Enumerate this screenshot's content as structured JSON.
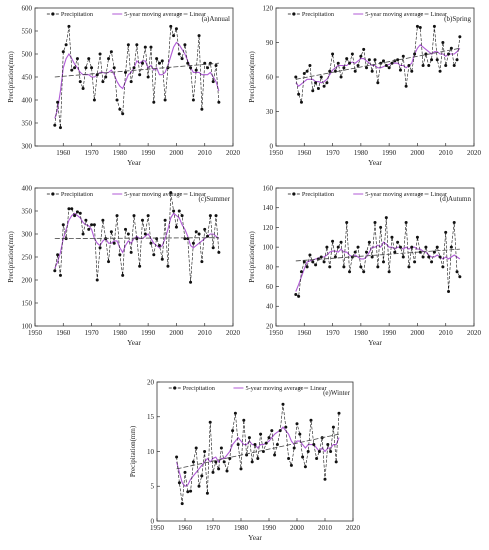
{
  "colors": {
    "precipitation": "#111111",
    "moving_average": "#b05ad6",
    "linear": "#444444",
    "axis": "#333333"
  },
  "chart_data": [
    {
      "type": "line",
      "panel_label": "(a)Annual",
      "xlabel": "Year",
      "ylabel": "Precipitation(mm)",
      "xlim": [
        1950,
        2020
      ],
      "ylim": [
        300,
        600
      ],
      "xticks": [
        1960,
        1970,
        1980,
        1990,
        2000,
        2010,
        2020
      ],
      "yticks": [
        300,
        350,
        400,
        450,
        500,
        550,
        600
      ],
      "legend": {
        "precipitation": "Precipitation",
        "moving_average": "5-year moving average",
        "linear": "Linear",
        "placement": "top"
      },
      "x": [
        1957,
        1958,
        1959,
        1960,
        1961,
        1962,
        1963,
        1964,
        1965,
        1966,
        1967,
        1968,
        1969,
        1970,
        1971,
        1972,
        1973,
        1974,
        1975,
        1976,
        1977,
        1978,
        1979,
        1980,
        1981,
        1982,
        1983,
        1984,
        1985,
        1986,
        1987,
        1988,
        1989,
        1990,
        1991,
        1992,
        1993,
        1994,
        1995,
        1996,
        1997,
        1998,
        1999,
        2000,
        2001,
        2002,
        2003,
        2004,
        2005,
        2006,
        2007,
        2008,
        2009,
        2010,
        2011,
        2012,
        2013,
        2014,
        2015
      ],
      "series": [
        {
          "name": "Precipitation",
          "values": [
            345,
            395,
            340,
            505,
            520,
            560,
            465,
            470,
            490,
            440,
            425,
            470,
            490,
            470,
            400,
            455,
            500,
            440,
            450,
            490,
            505,
            470,
            400,
            380,
            370,
            460,
            520,
            440,
            470,
            520,
            455,
            480,
            515,
            450,
            515,
            395,
            490,
            480,
            485,
            400,
            470,
            560,
            540,
            555,
            500,
            490,
            520,
            480,
            470,
            400,
            465,
            540,
            380,
            480,
            470,
            480,
            440,
            475,
            395
          ]
        },
        {
          "name": "5-year moving average",
          "values": [
            360,
            380,
            420,
            470,
            490,
            500,
            490,
            478,
            470,
            460,
            455,
            455,
            455,
            450,
            450,
            455,
            460,
            460,
            458,
            460,
            465,
            455,
            440,
            430,
            425,
            440,
            455,
            460,
            470,
            485,
            480,
            485,
            485,
            470,
            475,
            465,
            470,
            455,
            455,
            460,
            475,
            495,
            515,
            525,
            520,
            510,
            500,
            485,
            470,
            460,
            460,
            460,
            455,
            455,
            455,
            460,
            450,
            440,
            420
          ]
        }
      ],
      "linear": {
        "x": [
          1957,
          2015
        ],
        "y": [
          450,
          480
        ]
      }
    },
    {
      "type": "line",
      "panel_label": "(b)Spring",
      "xlabel": "Year",
      "ylabel": "Precipitation(mm)",
      "xlim": [
        1950,
        2020
      ],
      "ylim": [
        0,
        120
      ],
      "xticks": [
        1950,
        1960,
        1970,
        1980,
        1990,
        2000,
        2010,
        2020
      ],
      "yticks": [
        0,
        30,
        60,
        90,
        120
      ],
      "legend": {
        "precipitation": "Precipitation",
        "moving_average": "5-year moving average",
        "linear": "Linear",
        "placement": "top"
      },
      "x": [
        1957,
        1958,
        1959,
        1960,
        1961,
        1962,
        1963,
        1964,
        1965,
        1966,
        1967,
        1968,
        1969,
        1970,
        1971,
        1972,
        1973,
        1974,
        1975,
        1976,
        1977,
        1978,
        1979,
        1980,
        1981,
        1982,
        1983,
        1984,
        1985,
        1986,
        1987,
        1988,
        1989,
        1990,
        1991,
        1992,
        1993,
        1994,
        1995,
        1996,
        1997,
        1998,
        1999,
        2000,
        2001,
        2002,
        2003,
        2004,
        2005,
        2006,
        2007,
        2008,
        2009,
        2010,
        2011,
        2012,
        2013,
        2014,
        2015
      ],
      "series": [
        {
          "name": "Precipitation",
          "values": [
            60,
            45,
            38,
            63,
            65,
            70,
            48,
            55,
            50,
            60,
            52,
            55,
            65,
            80,
            65,
            72,
            60,
            68,
            76,
            72,
            80,
            65,
            70,
            78,
            84,
            68,
            75,
            65,
            75,
            55,
            72,
            74,
            70,
            68,
            72,
            74,
            75,
            66,
            78,
            52,
            70,
            65,
            80,
            104,
            103,
            70,
            80,
            70,
            75,
            104,
            75,
            65,
            90,
            70,
            80,
            85,
            70,
            75,
            95
          ]
        },
        {
          "name": "5-year moving average",
          "values": [
            55,
            52,
            54,
            56,
            58,
            58,
            58,
            56,
            56,
            55,
            56,
            58,
            62,
            66,
            68,
            70,
            70,
            70,
            70,
            72,
            73,
            72,
            74,
            76,
            76,
            74,
            72,
            70,
            70,
            68,
            68,
            69,
            70,
            71,
            72,
            72,
            72,
            70,
            70,
            68,
            70,
            72,
            80,
            85,
            88,
            86,
            84,
            82,
            80,
            82,
            82,
            80,
            80,
            78,
            80,
            80,
            80,
            82,
            85
          ]
        }
      ],
      "linear": {
        "x": [
          1957,
          2015
        ],
        "y": [
          58,
          85
        ]
      }
    },
    {
      "type": "line",
      "panel_label": "(c)Summer",
      "xlabel": "Year",
      "ylabel": "Precipitation(mm)",
      "xlim": [
        1950,
        2020
      ],
      "ylim": [
        100,
        400
      ],
      "xticks": [
        1950,
        1960,
        1970,
        1980,
        1990,
        2000,
        2010,
        2020
      ],
      "yticks": [
        100,
        150,
        200,
        250,
        300,
        350,
        400
      ],
      "legend": {
        "precipitation": "Precipitation",
        "moving_average": "5-year moving average",
        "linear": "Linear",
        "placement": "top"
      },
      "x": [
        1957,
        1958,
        1959,
        1960,
        1961,
        1962,
        1963,
        1964,
        1965,
        1966,
        1967,
        1968,
        1969,
        1970,
        1971,
        1972,
        1973,
        1974,
        1975,
        1976,
        1977,
        1978,
        1979,
        1980,
        1981,
        1982,
        1983,
        1984,
        1985,
        1986,
        1987,
        1988,
        1989,
        1990,
        1991,
        1992,
        1993,
        1994,
        1995,
        1996,
        1997,
        1998,
        1999,
        2000,
        2001,
        2002,
        2003,
        2004,
        2005,
        2006,
        2007,
        2008,
        2009,
        2010,
        2011,
        2012,
        2013,
        2014,
        2015
      ],
      "series": [
        {
          "name": "Precipitation",
          "values": [
            220,
            255,
            210,
            320,
            290,
            355,
            355,
            340,
            348,
            345,
            300,
            330,
            310,
            320,
            320,
            200,
            270,
            330,
            290,
            240,
            305,
            280,
            340,
            255,
            210,
            310,
            300,
            260,
            340,
            290,
            230,
            330,
            300,
            340,
            280,
            255,
            290,
            275,
            245,
            330,
            230,
            390,
            350,
            315,
            350,
            340,
            290,
            290,
            195,
            280,
            305,
            300,
            240,
            310,
            295,
            340,
            270,
            340,
            260
          ]
        },
        {
          "name": "5-year moving average",
          "values": [
            225,
            240,
            260,
            290,
            310,
            330,
            340,
            345,
            340,
            335,
            325,
            320,
            318,
            310,
            290,
            280,
            275,
            285,
            290,
            280,
            280,
            285,
            285,
            270,
            260,
            275,
            285,
            280,
            290,
            295,
            290,
            290,
            295,
            300,
            290,
            280,
            275,
            270,
            275,
            290,
            310,
            335,
            345,
            340,
            335,
            320,
            310,
            295,
            275,
            270,
            275,
            280,
            285,
            290,
            295,
            300,
            300,
            295,
            290
          ]
        }
      ],
      "linear": {
        "x": [
          1957,
          2015
        ],
        "y": [
          290,
          292
        ]
      }
    },
    {
      "type": "line",
      "panel_label": "(d)Autumn",
      "xlabel": "Year",
      "ylabel": "Precipitation(mm)",
      "xlim": [
        1950,
        2020
      ],
      "ylim": [
        20,
        160
      ],
      "xticks": [
        1950,
        1960,
        1970,
        1980,
        1990,
        2000,
        2010,
        2020
      ],
      "yticks": [
        20,
        40,
        60,
        80,
        100,
        120,
        140,
        160
      ],
      "legend": {
        "precipitation": "Precipitation",
        "moving_average": "5-year moving average",
        "linear": "Linear",
        "placement": "top"
      },
      "x": [
        1957,
        1958,
        1959,
        1960,
        1961,
        1962,
        1963,
        1964,
        1965,
        1966,
        1967,
        1968,
        1969,
        1970,
        1971,
        1972,
        1973,
        1974,
        1975,
        1976,
        1977,
        1978,
        1979,
        1980,
        1981,
        1982,
        1983,
        1984,
        1985,
        1986,
        1987,
        1988,
        1989,
        1990,
        1991,
        1992,
        1993,
        1994,
        1995,
        1996,
        1997,
        1998,
        1999,
        2000,
        2001,
        2002,
        2003,
        2004,
        2005,
        2006,
        2007,
        2008,
        2009,
        2010,
        2011,
        2012,
        2013,
        2014,
        2015
      ],
      "series": [
        {
          "name": "Precipitation",
          "values": [
            52,
            50,
            75,
            85,
            80,
            92,
            85,
            82,
            88,
            90,
            85,
            100,
            80,
            106,
            90,
            100,
            105,
            80,
            125,
            75,
            90,
            95,
            100,
            80,
            75,
            95,
            105,
            90,
            125,
            80,
            120,
            85,
            130,
            75,
            110,
            95,
            105,
            100,
            90,
            125,
            80,
            100,
            85,
            110,
            95,
            90,
            100,
            90,
            85,
            95,
            100,
            90,
            80,
            115,
            55,
            100,
            125,
            75,
            70
          ]
        },
        {
          "name": "5-year moving average",
          "values": [
            55,
            62,
            70,
            78,
            85,
            86,
            87,
            88,
            89,
            90,
            90,
            92,
            95,
            96,
            96,
            95,
            98,
            95,
            95,
            92,
            90,
            92,
            90,
            88,
            88,
            90,
            95,
            100,
            100,
            102,
            100,
            105,
            103,
            100,
            100,
            98,
            100,
            100,
            98,
            100,
            98,
            100,
            100,
            98,
            98,
            96,
            95,
            92,
            90,
            90,
            92,
            90,
            88,
            90,
            88,
            90,
            92,
            90,
            88
          ]
        }
      ],
      "linear": {
        "x": [
          1957,
          2015
        ],
        "y": [
          86,
          98
        ]
      }
    },
    {
      "type": "line",
      "panel_label": "(e)Winter",
      "xlabel": "Year",
      "ylabel": "Precipitation(mm)",
      "xlim": [
        1950,
        2020
      ],
      "ylim": [
        0,
        20
      ],
      "xticks": [
        1950,
        1960,
        1970,
        1980,
        1990,
        2000,
        2010,
        2020
      ],
      "yticks": [
        0,
        5,
        10,
        15,
        20
      ],
      "legend": {
        "precipitation": "Precipitation",
        "moving_average": "5-year moving average",
        "linear": "Linear",
        "placement": "top"
      },
      "x": [
        1957,
        1958,
        1959,
        1960,
        1961,
        1962,
        1963,
        1964,
        1965,
        1966,
        1967,
        1968,
        1969,
        1970,
        1971,
        1972,
        1973,
        1974,
        1975,
        1976,
        1977,
        1978,
        1979,
        1980,
        1981,
        1982,
        1983,
        1984,
        1985,
        1986,
        1987,
        1988,
        1989,
        1990,
        1991,
        1992,
        1993,
        1994,
        1995,
        1996,
        1997,
        1998,
        1999,
        2000,
        2001,
        2002,
        2003,
        2004,
        2005,
        2006,
        2007,
        2008,
        2009,
        2010,
        2011,
        2012,
        2013,
        2014,
        2015
      ],
      "series": [
        {
          "name": "Precipitation",
          "values": [
            9.2,
            5.5,
            2.5,
            7,
            4.2,
            4.3,
            8.5,
            10.5,
            5,
            6.5,
            10,
            4,
            14.2,
            7,
            8.5,
            7.5,
            10.5,
            8.5,
            7.2,
            9,
            13,
            15.5,
            11,
            7.5,
            14.5,
            9.5,
            12,
            8.5,
            11,
            9,
            12.5,
            10,
            11.2,
            12,
            13,
            9.5,
            11,
            13,
            16.8,
            13.5,
            9,
            8,
            10.5,
            14,
            12.5,
            9.2,
            7.8,
            10,
            14.5,
            11,
            9,
            10,
            12,
            6,
            11,
            10,
            13.5,
            8.5,
            15.5
          ]
        },
        {
          "name": "5-year moving average",
          "values": [
            8.5,
            7,
            5.5,
            5,
            5.2,
            6,
            6.5,
            7,
            7.5,
            8,
            8.5,
            9,
            8.5,
            9,
            9.2,
            8.5,
            9,
            9,
            9.5,
            10,
            11,
            11.5,
            12,
            11.5,
            11,
            11,
            11.5,
            11,
            11,
            10.5,
            11,
            11,
            11.2,
            11.5,
            12,
            12.5,
            12.8,
            13,
            13.5,
            13,
            12.5,
            11.5,
            11,
            11.5,
            11.5,
            11,
            10.5,
            11,
            11,
            11,
            10.5,
            10,
            10.5,
            10,
            10.5,
            10.5,
            11,
            11,
            12
          ]
        }
      ],
      "linear": {
        "x": [
          1957,
          2015
        ],
        "y": [
          7.5,
          12.5
        ]
      }
    }
  ]
}
